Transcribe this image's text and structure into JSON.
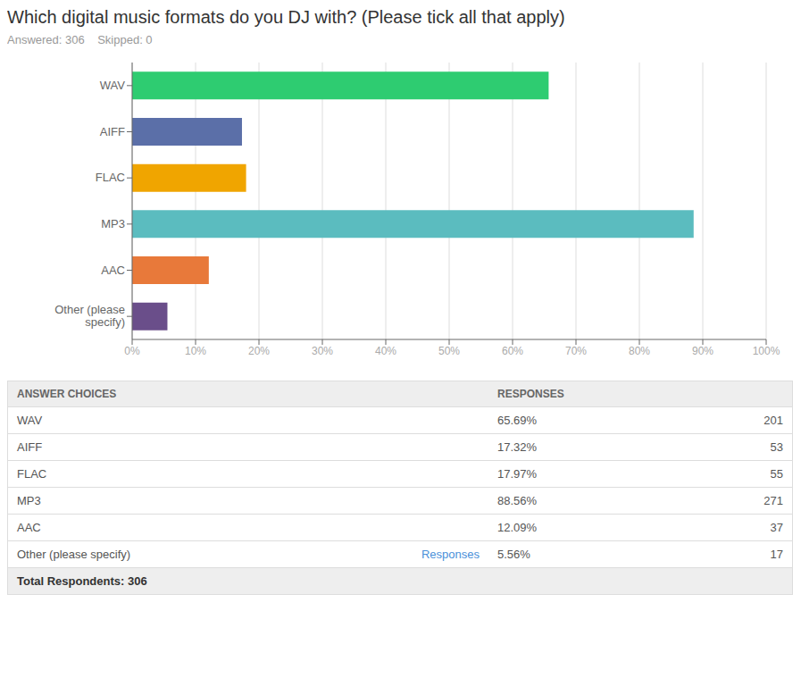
{
  "chart_data": {
    "type": "bar",
    "orientation": "horizontal",
    "title": "Which digital music formats do you DJ with? (Please tick all that apply)",
    "subtitle": "Answered: 306    Skipped: 0",
    "categories": [
      "WAV",
      "AIFF",
      "FLAC",
      "MP3",
      "AAC",
      "Other (please\nspecify)"
    ],
    "values": [
      65.69,
      17.32,
      17.97,
      88.56,
      12.09,
      5.56
    ],
    "colors": [
      "#2ecc71",
      "#5b6fa8",
      "#f0a500",
      "#5bbcbf",
      "#e8793a",
      "#6a4e8a"
    ],
    "xlim": [
      0,
      100
    ],
    "xticks": [
      {
        "value": 0,
        "label": "0%"
      },
      {
        "value": 10,
        "label": "10%"
      },
      {
        "value": 20,
        "label": "20%"
      },
      {
        "value": 30,
        "label": "30%"
      },
      {
        "value": 40,
        "label": "40%"
      },
      {
        "value": 50,
        "label": "50%"
      },
      {
        "value": 60,
        "label": "60%"
      },
      {
        "value": 70,
        "label": "70%"
      },
      {
        "value": 80,
        "label": "80%"
      },
      {
        "value": 90,
        "label": "90%"
      },
      {
        "value": 100,
        "label": "100%"
      }
    ],
    "grid": true,
    "table": {
      "header": [
        "ANSWER CHOICES",
        "RESPONSES"
      ],
      "rows": [
        {
          "answer": "WAV",
          "percentage": "65.69%",
          "count": 201
        },
        {
          "answer": "AIFF",
          "percentage": "17.32%",
          "count": 53
        },
        {
          "answer": "FLAC",
          "percentage": "17.97%",
          "count": 55
        },
        {
          "answer": "MP3",
          "percentage": "88.56%",
          "count": 271
        },
        {
          "answer": "AAC",
          "percentage": "12.09%",
          "count": 37
        },
        {
          "answer": "Other (please specify)",
          "link": "Responses",
          "percentage": "5.56%",
          "count": 17
        }
      ],
      "total": "Total Respondents: 306"
    }
  }
}
